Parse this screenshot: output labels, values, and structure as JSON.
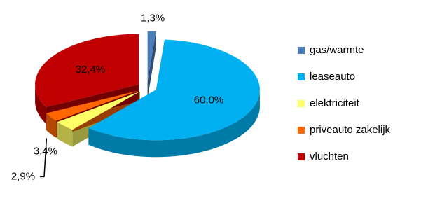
{
  "chart_data": {
    "type": "pie",
    "categories": [
      "gas/warmte",
      "leaseauto",
      "elektriciteit",
      "priveauto zakelijk",
      "vluchten"
    ],
    "values": [
      1.3,
      60.0,
      3.4,
      2.9,
      32.4
    ],
    "value_labels": [
      "1,3%",
      "60,0%",
      "3,4%",
      "2,9%",
      "32,4%"
    ],
    "colors": [
      "#4a7ebb",
      "#00b0f0",
      "#ffff66",
      "#ff6600",
      "#c00000"
    ],
    "legend": "right"
  }
}
